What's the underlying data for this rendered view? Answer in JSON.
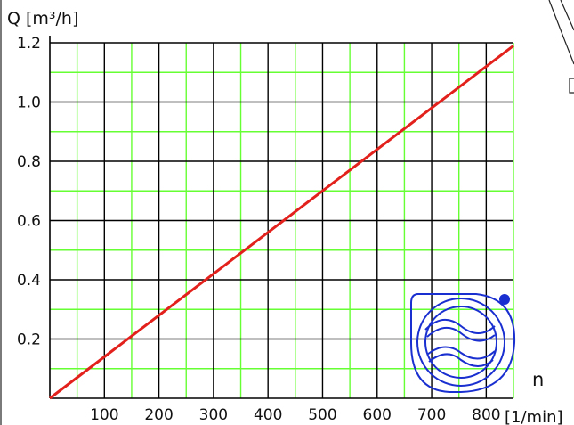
{
  "chart_data": {
    "type": "line",
    "ylabel": "Q [m³/h]",
    "xlabel": "n",
    "xunit": "[1/min]",
    "xlim": [
      0,
      850
    ],
    "ylim": [
      0,
      1.2
    ],
    "x_ticks": [
      100,
      200,
      300,
      400,
      500,
      600,
      700,
      800
    ],
    "x_tick_labels": [
      "100",
      "200",
      "300",
      "400",
      "500",
      "600",
      "700",
      "800"
    ],
    "y_ticks": [
      0.2,
      0.4,
      0.6,
      0.8,
      1.0,
      1.2
    ],
    "y_tick_labels": [
      "0.2",
      "0.4",
      "0.6",
      "0.8",
      "1.0",
      "1.2"
    ],
    "minor_x_step": 50,
    "minor_y_step": 0.1,
    "grid": true,
    "colors": {
      "major_grid": "#000000",
      "minor_grid": "#66ff33",
      "line": "#e3211c",
      "logo": "#1a2fd0"
    },
    "series": [
      {
        "x": [
          0,
          850
        ],
        "y": [
          0,
          1.19
        ]
      }
    ],
    "logo_icon": "pump-logo-icon"
  }
}
